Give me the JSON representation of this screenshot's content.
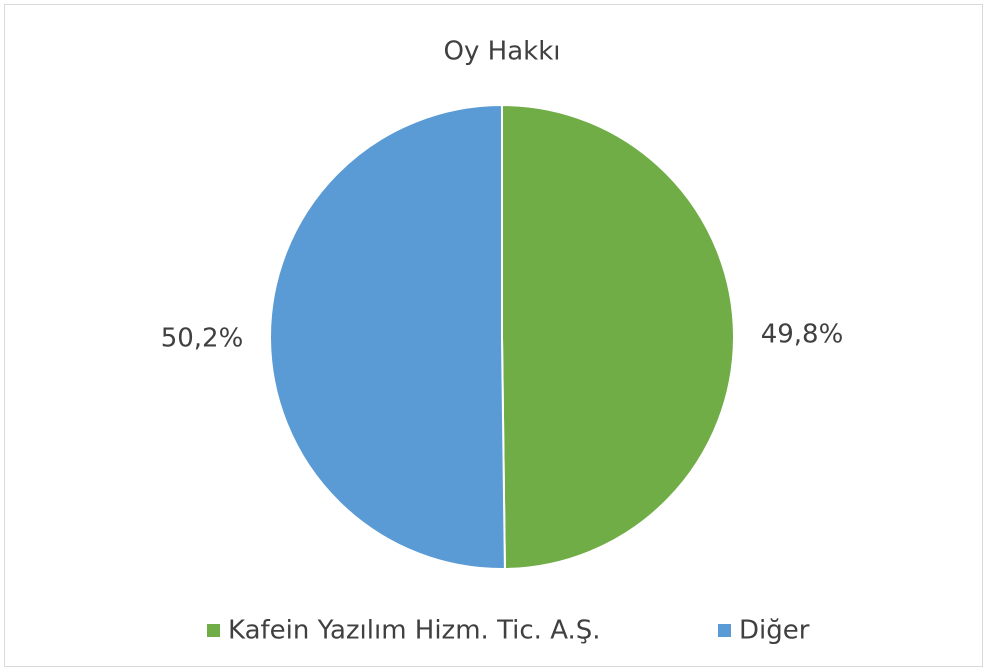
{
  "chart_data": {
    "type": "pie",
    "title": "Oy Hakkı",
    "categories": [
      "Kafein Yazılım Hizm. Tic. A.Ş.",
      "Diğer"
    ],
    "values": [
      49.8,
      50.2
    ],
    "value_labels": [
      "49,8%",
      "50,2%"
    ],
    "colors": [
      "#70ad47",
      "#5b9bd5"
    ],
    "legend": "bottom"
  }
}
